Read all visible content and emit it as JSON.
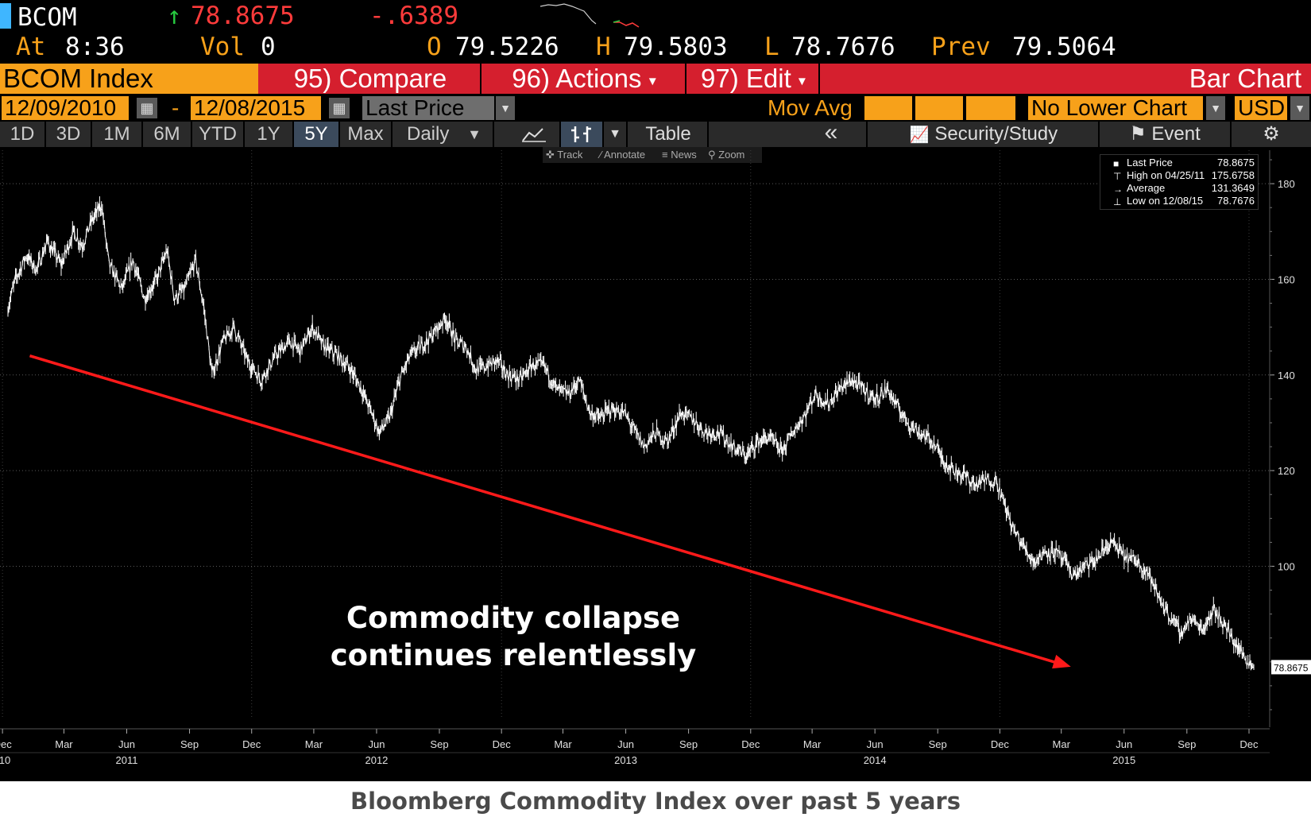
{
  "quote": {
    "ticker": "BCOM",
    "change_arrow": "↑",
    "last": "78.8675",
    "change": "-.6389",
    "at_label": "At",
    "time": "8:36",
    "vol_label": "Vol",
    "vol": "0",
    "open_label": "O",
    "open": "79.5226",
    "high_label": "H",
    "high": "79.5803",
    "low_label": "L",
    "low": "78.7676",
    "prev_label": "Prev",
    "prev": "79.5064"
  },
  "function_bar": {
    "security": "BCOM Index",
    "compare": "95) Compare",
    "actions": "96) Actions",
    "edit": "97) Edit",
    "chart_type": "Bar Chart"
  },
  "settings_bar": {
    "start_date": "12/09/2010",
    "date_sep": "-",
    "end_date": "12/08/2015",
    "price_field": "Last Price",
    "mov_avg_label": "Mov Avg",
    "lower_chart": "No Lower Chart",
    "currency": "USD"
  },
  "tabs": {
    "periods": [
      "1D",
      "3D",
      "1M",
      "6M",
      "YTD",
      "1Y",
      "5Y",
      "Max"
    ],
    "active": "5Y",
    "frequency": "Daily",
    "table_label": "Table",
    "back_label": "«",
    "security_study": "Security/Study",
    "event": "Event"
  },
  "tools": {
    "track": "Track",
    "annotate": "Annotate",
    "news": "News",
    "zoom": "Zoom"
  },
  "legend": {
    "rows": [
      {
        "label": "Last Price",
        "value": "78.8675"
      },
      {
        "label": "High on 04/25/11",
        "value": "175.6758"
      },
      {
        "label": "Average",
        "value": "131.3649"
      },
      {
        "label": "Low on 12/08/15",
        "value": "78.7676"
      }
    ]
  },
  "caption": "Bloomberg Commodity Index over past 5 years",
  "colors": {
    "amber": "#f7a11a",
    "bar_red": "#d51f2e",
    "trend_red": "#ff1a1a",
    "price_line": "#ffffff",
    "background": "#000000"
  },
  "chart_data": {
    "type": "bar",
    "series": [
      {
        "name": "BCOM Index",
        "color": "#ffffff"
      }
    ],
    "x_range": [
      "2010-12-09",
      "2015-12-08"
    ],
    "ylim": [
      68,
      187
    ],
    "yticks": [
      100,
      120,
      140,
      160,
      180
    ],
    "last_price_label": "78.8675",
    "x_tick_labels": [
      {
        "date": "2010-12-01",
        "label": "Dec"
      },
      {
        "date": "2011-03-01",
        "label": "Mar"
      },
      {
        "date": "2011-06-01",
        "label": "Jun"
      },
      {
        "date": "2011-09-01",
        "label": "Sep"
      },
      {
        "date": "2011-12-01",
        "label": "Dec"
      },
      {
        "date": "2012-03-01",
        "label": "Mar"
      },
      {
        "date": "2012-06-01",
        "label": "Jun"
      },
      {
        "date": "2012-09-01",
        "label": "Sep"
      },
      {
        "date": "2012-12-01",
        "label": "Dec"
      },
      {
        "date": "2013-03-01",
        "label": "Mar"
      },
      {
        "date": "2013-06-01",
        "label": "Jun"
      },
      {
        "date": "2013-09-01",
        "label": "Sep"
      },
      {
        "date": "2013-12-01",
        "label": "Dec"
      },
      {
        "date": "2014-03-01",
        "label": "Mar"
      },
      {
        "date": "2014-06-01",
        "label": "Jun"
      },
      {
        "date": "2014-09-01",
        "label": "Sep"
      },
      {
        "date": "2014-12-01",
        "label": "Dec"
      },
      {
        "date": "2015-03-01",
        "label": "Mar"
      },
      {
        "date": "2015-06-01",
        "label": "Jun"
      },
      {
        "date": "2015-09-01",
        "label": "Sep"
      },
      {
        "date": "2015-12-01",
        "label": "Dec"
      }
    ],
    "year_labels": [
      {
        "date": "2010-12-01",
        "label": "10"
      },
      {
        "date": "2011-06-01",
        "label": "2011"
      },
      {
        "date": "2013-06-01",
        "label": "2013"
      },
      {
        "date": "2012-06-01",
        "label": "2012"
      },
      {
        "date": "2014-06-01",
        "label": "2014"
      },
      {
        "date": "2015-06-01",
        "label": "2015"
      }
    ],
    "points": [
      [
        "2010-12-09",
        154
      ],
      [
        "2010-12-20",
        160
      ],
      [
        "2011-01-05",
        165
      ],
      [
        "2011-01-20",
        162
      ],
      [
        "2011-02-05",
        168
      ],
      [
        "2011-02-25",
        163
      ],
      [
        "2011-03-15",
        170
      ],
      [
        "2011-03-28",
        167
      ],
      [
        "2011-04-10",
        172
      ],
      [
        "2011-04-25",
        175.7
      ],
      [
        "2011-05-06",
        163
      ],
      [
        "2011-05-25",
        158
      ],
      [
        "2011-06-10",
        164
      ],
      [
        "2011-06-27",
        156
      ],
      [
        "2011-07-15",
        160
      ],
      [
        "2011-07-30",
        166
      ],
      [
        "2011-08-10",
        156
      ],
      [
        "2011-08-25",
        158
      ],
      [
        "2011-09-10",
        164
      ],
      [
        "2011-09-22",
        154
      ],
      [
        "2011-10-04",
        140
      ],
      [
        "2011-10-20",
        147
      ],
      [
        "2011-11-05",
        150
      ],
      [
        "2011-11-25",
        143
      ],
      [
        "2011-12-15",
        139
      ],
      [
        "2012-01-05",
        144
      ],
      [
        "2012-01-25",
        147
      ],
      [
        "2012-02-10",
        145
      ],
      [
        "2012-02-28",
        150
      ],
      [
        "2012-03-15",
        146
      ],
      [
        "2012-04-05",
        144
      ],
      [
        "2012-04-25",
        141
      ],
      [
        "2012-05-10",
        137
      ],
      [
        "2012-05-25",
        132
      ],
      [
        "2012-06-05",
        128
      ],
      [
        "2012-06-20",
        131
      ],
      [
        "2012-07-05",
        139
      ],
      [
        "2012-07-20",
        144
      ],
      [
        "2012-08-05",
        146
      ],
      [
        "2012-08-20",
        148
      ],
      [
        "2012-09-10",
        152
      ],
      [
        "2012-09-25",
        147
      ],
      [
        "2012-10-10",
        146
      ],
      [
        "2012-10-25",
        141
      ],
      [
        "2012-11-10",
        142
      ],
      [
        "2012-11-25",
        143
      ],
      [
        "2012-12-10",
        140
      ],
      [
        "2012-12-28",
        139
      ],
      [
        "2013-01-15",
        142
      ],
      [
        "2013-02-01",
        142
      ],
      [
        "2013-02-20",
        137
      ],
      [
        "2013-03-10",
        136
      ],
      [
        "2013-03-25",
        139
      ],
      [
        "2013-04-10",
        132
      ],
      [
        "2013-04-25",
        131
      ],
      [
        "2013-05-10",
        133
      ],
      [
        "2013-05-30",
        132
      ],
      [
        "2013-06-15",
        128
      ],
      [
        "2013-06-28",
        125
      ],
      [
        "2013-07-15",
        128
      ],
      [
        "2013-08-01",
        126
      ],
      [
        "2013-08-20",
        132
      ],
      [
        "2013-09-05",
        131
      ],
      [
        "2013-09-25",
        128
      ],
      [
        "2013-10-15",
        128
      ],
      [
        "2013-11-05",
        125
      ],
      [
        "2013-11-25",
        123
      ],
      [
        "2013-12-10",
        126
      ],
      [
        "2013-12-28",
        127
      ],
      [
        "2014-01-15",
        124
      ],
      [
        "2014-02-01",
        128
      ],
      [
        "2014-02-20",
        132
      ],
      [
        "2014-03-05",
        136
      ],
      [
        "2014-03-25",
        134
      ],
      [
        "2014-04-10",
        137
      ],
      [
        "2014-04-28",
        139
      ],
      [
        "2014-05-15",
        137
      ],
      [
        "2014-06-01",
        135
      ],
      [
        "2014-06-20",
        137
      ],
      [
        "2014-07-05",
        133
      ],
      [
        "2014-07-20",
        130
      ],
      [
        "2014-08-05",
        128
      ],
      [
        "2014-08-25",
        126
      ],
      [
        "2014-09-10",
        122
      ],
      [
        "2014-09-25",
        120
      ],
      [
        "2014-10-10",
        119
      ],
      [
        "2014-10-25",
        117
      ],
      [
        "2014-11-10",
        118
      ],
      [
        "2014-11-26",
        118
      ],
      [
        "2014-12-05",
        114
      ],
      [
        "2014-12-20",
        108
      ],
      [
        "2015-01-05",
        104
      ],
      [
        "2015-01-20",
        101
      ],
      [
        "2015-02-05",
        103
      ],
      [
        "2015-02-20",
        103
      ],
      [
        "2015-03-05",
        101
      ],
      [
        "2015-03-20",
        98
      ],
      [
        "2015-04-05",
        100
      ],
      [
        "2015-04-20",
        101
      ],
      [
        "2015-05-05",
        104
      ],
      [
        "2015-05-15",
        105
      ],
      [
        "2015-06-01",
        102
      ],
      [
        "2015-06-20",
        101
      ],
      [
        "2015-07-05",
        99
      ],
      [
        "2015-07-20",
        94
      ],
      [
        "2015-08-05",
        90
      ],
      [
        "2015-08-24",
        86
      ],
      [
        "2015-09-05",
        89
      ],
      [
        "2015-09-25",
        87
      ],
      [
        "2015-10-10",
        91
      ],
      [
        "2015-10-25",
        88
      ],
      [
        "2015-11-10",
        84
      ],
      [
        "2015-11-25",
        81
      ],
      [
        "2015-12-08",
        78.9
      ]
    ],
    "trend_line": {
      "from": [
        "2011-01-10",
        144
      ],
      "to": [
        "2015-03-15",
        79
      ]
    },
    "annotation": [
      "Commodity collapse",
      "continues relentlessly"
    ]
  }
}
